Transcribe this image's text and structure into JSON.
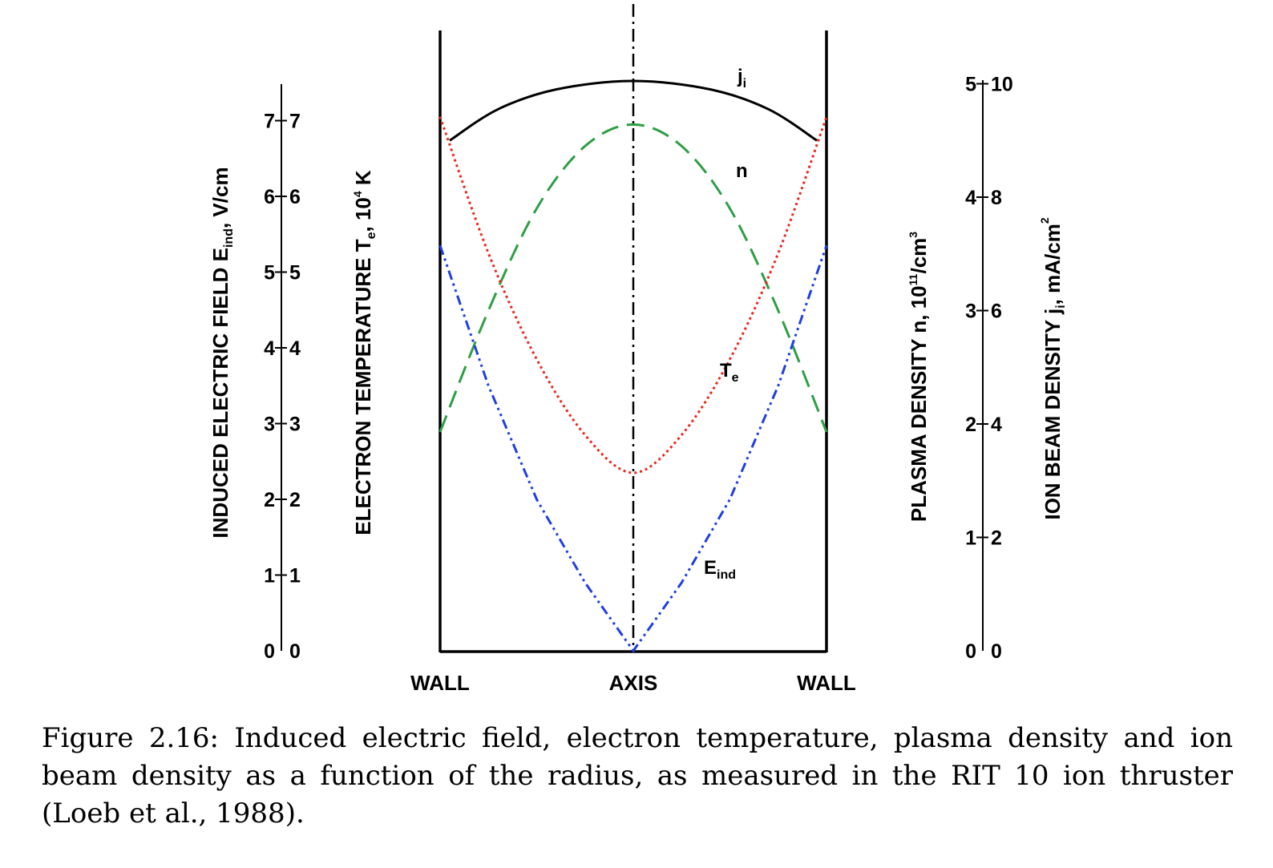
{
  "chart_data": {
    "type": "line",
    "xlabels": [
      "WALL",
      "AXIS",
      "WALL"
    ],
    "x_range": [
      -1,
      1
    ],
    "axes": {
      "e_ind": {
        "label": {
          "main": "INDUCED ELECTRIC FIELD E",
          "sub": "ind",
          "rest": ",  V/cm"
        },
        "ticks": [
          "0",
          "1",
          "2",
          "3",
          "4",
          "5",
          "6",
          "7"
        ],
        "range": [
          0,
          7.5
        ]
      },
      "t_e": {
        "label": {
          "main": "ELECTRON TEMPERATURE T",
          "sub": "e",
          "mid": ",  10",
          "sup": "4",
          "rest": " K"
        },
        "ticks": [
          "0",
          "1",
          "2",
          "3",
          "4",
          "5",
          "6",
          "7"
        ],
        "range": [
          0,
          7.5
        ]
      },
      "n": {
        "label": {
          "main": "PLASMA DENSITY n, 10",
          "sup": "11",
          "rest": "/cm",
          "sup2": "3"
        },
        "ticks": [
          "0",
          "1",
          "2",
          "3",
          "4",
          "5"
        ],
        "range": [
          0,
          5
        ]
      },
      "j_i": {
        "label": {
          "main": "ION BEAM DENSITY j",
          "sub": "i",
          "rest": ",  mA/cm",
          "sup": "2"
        },
        "ticks": [
          "0",
          "2",
          "4",
          "6",
          "8",
          "10"
        ],
        "range": [
          0,
          10
        ]
      }
    },
    "series": [
      {
        "key": "ji",
        "label_main": "j",
        "label_sub": "i",
        "axis": "j_i",
        "color": "#000000",
        "dash": "",
        "x": [
          -0.95,
          -0.7,
          -0.4,
          0,
          0.4,
          0.7,
          0.95
        ],
        "y": [
          9.0,
          9.55,
          9.9,
          10.05,
          9.9,
          9.55,
          9.0
        ]
      },
      {
        "key": "n",
        "label_main": "n",
        "label_sub": "",
        "axis": "n",
        "color": "#2e9e45",
        "dash": "22 11",
        "x": [
          -1,
          -0.75,
          -0.5,
          -0.25,
          0,
          0.25,
          0.5,
          0.75,
          1
        ],
        "y": [
          1.93,
          3.0,
          3.9,
          4.45,
          4.64,
          4.45,
          3.9,
          3.0,
          1.93
        ]
      },
      {
        "key": "te",
        "label_main": "T",
        "label_sub": "e",
        "axis": "t_e",
        "color": "#e8281e",
        "dash": "3 4",
        "x": [
          -1,
          -0.75,
          -0.5,
          -0.25,
          0,
          0.25,
          0.5,
          0.75,
          1
        ],
        "y": [
          7.05,
          5.25,
          3.85,
          2.85,
          2.35,
          2.85,
          3.85,
          5.25,
          7.05
        ]
      },
      {
        "key": "eind",
        "label_main": "E",
        "label_sub": "ind",
        "axis": "e_ind",
        "color": "#1f3ee0",
        "dash": "12 5 3 5 3 5",
        "x": [
          -1,
          -0.75,
          -0.5,
          -0.25,
          0,
          0.25,
          0.5,
          0.75,
          1
        ],
        "y": [
          5.35,
          3.5,
          2.0,
          0.9,
          0.0,
          0.9,
          2.0,
          3.5,
          5.35
        ]
      }
    ]
  },
  "caption": "Figure 2.16: Induced electric field, electron temperature, plasma density and ion beam density as a function of the radius, as measured in the RIT 10 ion thruster (Loeb et al., 1988)."
}
